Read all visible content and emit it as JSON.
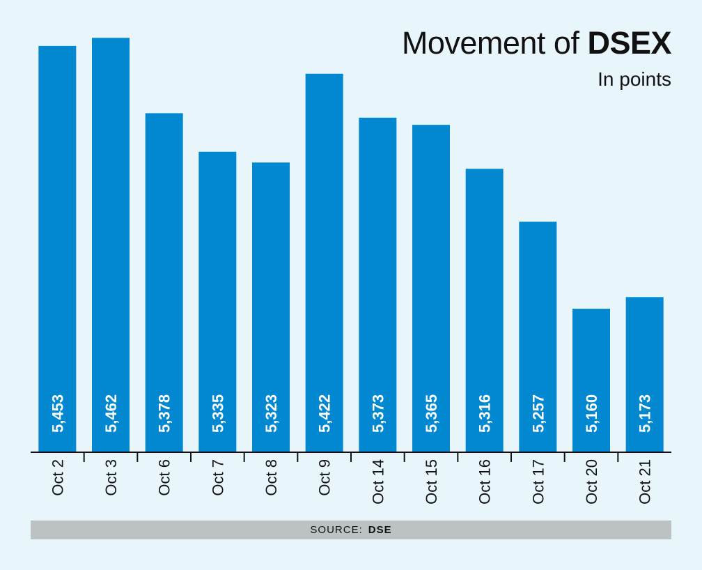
{
  "title": {
    "prefix": "Movement of ",
    "emphasis": "DSEX"
  },
  "subtitle": "In points",
  "source": {
    "label": "SOURCE:",
    "name": "DSE"
  },
  "colors": {
    "bar": "#0288d1",
    "background": "#e8f6fc",
    "axis": "#111111",
    "source_bar": "#bcc1c4"
  },
  "chart_data": {
    "type": "bar",
    "categories": [
      "Oct 2",
      "Oct 3",
      "Oct 6",
      "Oct 7",
      "Oct 8",
      "Oct 9",
      "Oct 14",
      "Oct 15",
      "Oct 16",
      "Oct 17",
      "Oct 20",
      "Oct 21"
    ],
    "values": [
      5453,
      5462,
      5378,
      5335,
      5323,
      5422,
      5373,
      5365,
      5316,
      5257,
      5160,
      5173
    ],
    "value_labels": [
      "5,453",
      "5,462",
      "5,378",
      "5,335",
      "5,323",
      "5,422",
      "5,373",
      "5,365",
      "5,316",
      "5,257",
      "5,160",
      "5,173"
    ],
    "ylim": [
      5000,
      5470
    ],
    "grid": false,
    "legend": "none"
  }
}
